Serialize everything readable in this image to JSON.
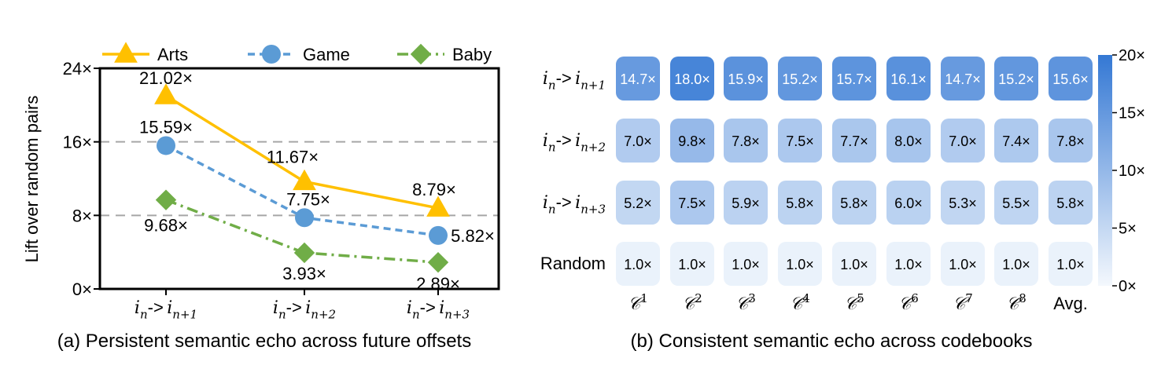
{
  "chart_data": [
    {
      "type": "line",
      "caption": "(a) Persistent semantic echo across future offsets",
      "ylabel": "Lift over random pairs",
      "ylim": [
        0,
        24
      ],
      "yticks": [
        "0×",
        "8×",
        "16×",
        "24×"
      ],
      "ytick_values": [
        0,
        8,
        16,
        24
      ],
      "grid_lines": [
        8,
        16
      ],
      "categories": [
        {
          "base": "i",
          "sub": "n",
          "arrow": "->",
          "target": "i",
          "tsub": "n+1"
        },
        {
          "base": "i",
          "sub": "n",
          "arrow": "->",
          "target": "i",
          "tsub": "n+2"
        },
        {
          "base": "i",
          "sub": "n",
          "arrow": "->",
          "target": "i",
          "tsub": "n+3"
        }
      ],
      "legend_position": "top",
      "series": [
        {
          "name": "Arts",
          "color": "#FFC000",
          "marker": "triangle",
          "dash": "solid",
          "values": [
            21.02,
            11.67,
            8.79
          ],
          "labels": [
            "21.02×",
            "11.67×",
            "8.79×"
          ]
        },
        {
          "name": "Game",
          "color": "#5B9BD5",
          "marker": "circle",
          "dash": "dashed",
          "values": [
            15.59,
            7.75,
            5.82
          ],
          "labels": [
            "15.59×",
            "7.75×",
            "5.82×"
          ]
        },
        {
          "name": "Baby",
          "color": "#70AD47",
          "marker": "diamond",
          "dash": "dashdot",
          "values": [
            9.68,
            3.93,
            2.89
          ],
          "labels": [
            "9.68×",
            "3.93×",
            "2.89×"
          ]
        }
      ]
    },
    {
      "type": "heatmap",
      "caption": "(b) Consistent semantic echo across codebooks",
      "rows": [
        {
          "base": "i",
          "sub": "n",
          "arrow": "->",
          "target": "i",
          "tsub": "n+1"
        },
        {
          "base": "i",
          "sub": "n",
          "arrow": "->",
          "target": "i",
          "tsub": "n+2"
        },
        {
          "base": "i",
          "sub": "n",
          "arrow": "->",
          "target": "i",
          "tsub": "n+3"
        },
        {
          "text": "Random"
        }
      ],
      "columns": [
        {
          "base": "𝒞",
          "sup": "1"
        },
        {
          "base": "𝒞",
          "sup": "2"
        },
        {
          "base": "𝒞",
          "sup": "3"
        },
        {
          "base": "𝒞",
          "sup": "4"
        },
        {
          "base": "𝒞",
          "sup": "5"
        },
        {
          "base": "𝒞",
          "sup": "6"
        },
        {
          "base": "𝒞",
          "sup": "7"
        },
        {
          "base": "𝒞",
          "sup": "8"
        },
        {
          "text": "Avg."
        }
      ],
      "values": [
        [
          14.7,
          18.0,
          15.9,
          15.2,
          15.7,
          16.1,
          14.7,
          15.2,
          15.6
        ],
        [
          7.0,
          9.8,
          7.8,
          7.5,
          7.7,
          8.0,
          7.0,
          7.4,
          7.8
        ],
        [
          5.2,
          7.5,
          5.9,
          5.8,
          5.8,
          6.0,
          5.3,
          5.5,
          5.8
        ],
        [
          1.0,
          1.0,
          1.0,
          1.0,
          1.0,
          1.0,
          1.0,
          1.0,
          1.0
        ]
      ],
      "cell_labels": [
        [
          "14.7×",
          "18.0×",
          "15.9×",
          "15.2×",
          "15.7×",
          "16.1×",
          "14.7×",
          "15.2×",
          "15.6×"
        ],
        [
          "7.0×",
          "9.8×",
          "7.8×",
          "7.5×",
          "7.7×",
          "8.0×",
          "7.0×",
          "7.4×",
          "7.8×"
        ],
        [
          "5.2×",
          "7.5×",
          "5.9×",
          "5.8×",
          "5.8×",
          "6.0×",
          "5.3×",
          "5.5×",
          "5.8×"
        ],
        [
          "1.0×",
          "1.0×",
          "1.0×",
          "1.0×",
          "1.0×",
          "1.0×",
          "1.0×",
          "1.0×",
          "1.0×"
        ]
      ],
      "colorbar": {
        "range": [
          0,
          20
        ],
        "ticks": [
          "0×",
          "5×",
          "10×",
          "15×",
          "20×"
        ],
        "tick_values": [
          0,
          5,
          10,
          15,
          20
        ],
        "low_color": "#F4F8FD",
        "high_color": "#3478D4"
      }
    }
  ]
}
